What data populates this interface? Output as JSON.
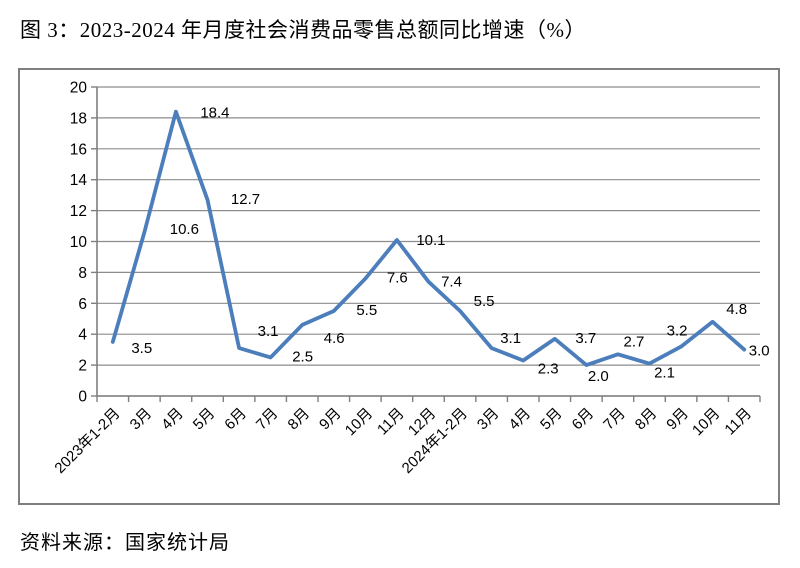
{
  "title": "图 3：2023-2024 年月度社会消费品零售总额同比增速（%）",
  "source": "资料来源：国家统计局",
  "chart_data": {
    "type": "line",
    "title": "2023-2024 年月度社会消费品零售总额同比增速（%）",
    "categories": [
      "2023年1-2月",
      "3月",
      "4月",
      "5月",
      "6月",
      "7月",
      "8月",
      "9月",
      "10月",
      "11月",
      "12月",
      "2024年1-2月",
      "3月",
      "4月",
      "5月",
      "6月",
      "7月",
      "8月",
      "9月",
      "10月",
      "11月"
    ],
    "values": [
      3.5,
      10.6,
      18.4,
      12.7,
      3.1,
      2.5,
      4.6,
      5.5,
      7.6,
      10.1,
      7.4,
      5.5,
      3.1,
      2.3,
      3.7,
      2.0,
      2.7,
      2.1,
      3.2,
      4.8,
      3.0
    ],
    "point_labels": [
      "3.5",
      "10.6",
      "18.4",
      "12.7",
      "3.1",
      "2.5",
      "4.6",
      "5.5",
      "7.6",
      "10.1",
      "7.4",
      "5.5",
      "3.1",
      "2.3",
      "3.7",
      "2.0",
      "2.7",
      "2.1",
      "3.2",
      "4.8",
      "3.0"
    ],
    "xlabel": "",
    "ylabel": "",
    "ylim": [
      0,
      20
    ],
    "ytick_step": 2,
    "grid": true,
    "legend": "none",
    "line_color": "#4b7ebb",
    "grid_color": "#8c8c8c",
    "axis_color": "#7f7f7f",
    "label_color": "#000000"
  }
}
